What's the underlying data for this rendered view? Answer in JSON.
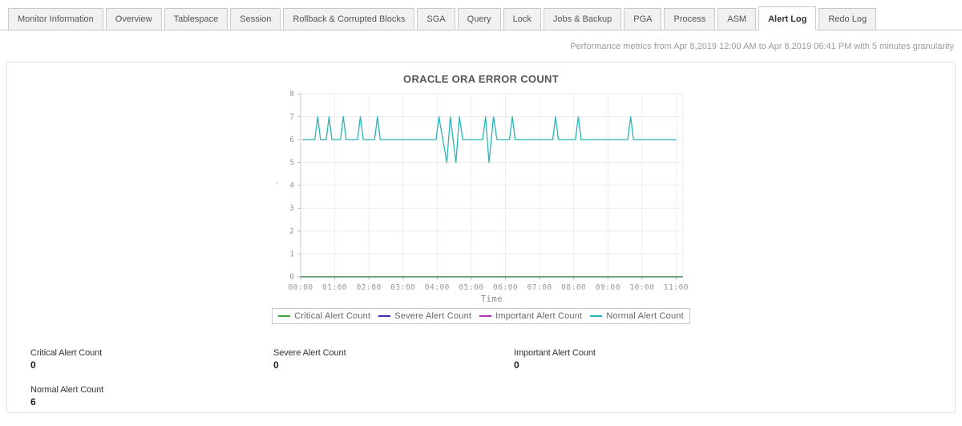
{
  "tabs": [
    {
      "label": "Monitor Information",
      "active": false
    },
    {
      "label": "Overview",
      "active": false
    },
    {
      "label": "Tablespace",
      "active": false
    },
    {
      "label": "Session",
      "active": false
    },
    {
      "label": "Rollback & Corrupted Blocks",
      "active": false
    },
    {
      "label": "SGA",
      "active": false
    },
    {
      "label": "Query",
      "active": false
    },
    {
      "label": "Lock",
      "active": false
    },
    {
      "label": "Jobs & Backup",
      "active": false
    },
    {
      "label": "PGA",
      "active": false
    },
    {
      "label": "Process",
      "active": false
    },
    {
      "label": "ASM",
      "active": false
    },
    {
      "label": "Alert Log",
      "active": true
    },
    {
      "label": "Redo Log",
      "active": false
    }
  ],
  "subtitle": "Performance metrics from Apr 8,2019 12:00 AM to Apr 8,2019 06:41 PM with 5 minutes granularity",
  "chart_data": {
    "type": "line",
    "title": "ORACLE ORA ERROR COUNT",
    "xlabel": "Time",
    "ylabel": "",
    "y_axis_mark": "'",
    "x_range_minutes": [
      0,
      672
    ],
    "ylim": [
      0,
      8
    ],
    "grid": true,
    "legend_position": "bottom",
    "x_tick_interval_minutes": 60,
    "x_tick_labels": [
      "00:00",
      "01:00",
      "02:00",
      "03:00",
      "04:00",
      "05:00",
      "06:00",
      "07:00",
      "08:00",
      "09:00",
      "10:00",
      "11:00"
    ],
    "y_tick_labels": [
      "0",
      "1",
      "2",
      "3",
      "4",
      "5",
      "6",
      "7",
      "8"
    ],
    "series": [
      {
        "name": "Critical Alert Count",
        "color": "#3da43d",
        "points": [
          [
            0,
            0
          ],
          [
            672,
            0
          ]
        ]
      },
      {
        "name": "Severe Alert Count",
        "color": "#3434b2",
        "points": [
          [
            0,
            0
          ],
          [
            672,
            0
          ]
        ]
      },
      {
        "name": "Important Alert Count",
        "color": "#b233b2",
        "points": [
          [
            0,
            0
          ],
          [
            672,
            0
          ]
        ]
      },
      {
        "name": "Normal Alert Count",
        "color": "#2ab5b5",
        "points": [
          [
            3,
            6
          ],
          [
            25,
            6
          ],
          [
            30,
            7
          ],
          [
            35,
            6
          ],
          [
            45,
            6
          ],
          [
            50,
            7
          ],
          [
            55,
            6
          ],
          [
            70,
            6
          ],
          [
            75,
            7
          ],
          [
            80,
            6
          ],
          [
            100,
            6
          ],
          [
            105,
            7
          ],
          [
            110,
            6
          ],
          [
            130,
            6
          ],
          [
            135,
            7
          ],
          [
            140,
            6
          ],
          [
            238,
            6
          ],
          [
            243,
            7
          ],
          [
            257,
            5
          ],
          [
            263,
            7
          ],
          [
            273,
            5
          ],
          [
            279,
            7
          ],
          [
            285,
            6
          ],
          [
            320,
            6
          ],
          [
            325,
            7
          ],
          [
            331,
            5
          ],
          [
            339,
            7
          ],
          [
            345,
            6
          ],
          [
            367,
            6
          ],
          [
            372,
            7
          ],
          [
            377,
            6
          ],
          [
            443,
            6
          ],
          [
            448,
            7
          ],
          [
            453,
            6
          ],
          [
            483,
            6
          ],
          [
            488,
            7
          ],
          [
            493,
            6
          ],
          [
            575,
            6
          ],
          [
            580,
            7
          ],
          [
            585,
            6
          ],
          [
            660,
            6
          ]
        ]
      }
    ]
  },
  "stats": [
    {
      "label": "Critical Alert Count",
      "value": "0"
    },
    {
      "label": "Severe Alert Count",
      "value": "0"
    },
    {
      "label": "Important Alert Count",
      "value": "0"
    },
    {
      "label": "Normal Alert Count",
      "value": "6"
    }
  ]
}
